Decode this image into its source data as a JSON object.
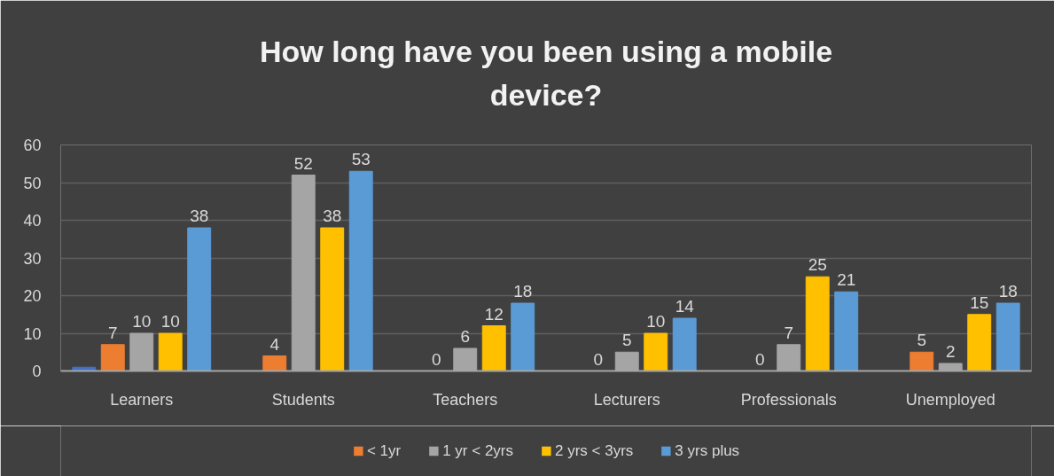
{
  "chart_data": {
    "type": "bar",
    "title": "How long have you been using a mobile device?",
    "categories": [
      "Learners",
      "Students",
      "Teachers",
      "Lecturers",
      "Professionals",
      "Unemployed"
    ],
    "series": [
      {
        "color": "#4472c4",
        "values": [
          1,
          null,
          null,
          null,
          null,
          null
        ]
      },
      {
        "name": "< 1yr",
        "color": "#ed7d31",
        "values": [
          7,
          4,
          0,
          0,
          0,
          5
        ],
        "value_labels": [
          "7",
          "4",
          "0",
          "0",
          "0",
          "5"
        ]
      },
      {
        "name": "1 yr < 2yrs",
        "color": "#a5a5a5",
        "values": [
          10,
          52,
          6,
          5,
          7,
          2
        ],
        "value_labels": [
          "10",
          "52",
          "6",
          "5",
          "7",
          "2"
        ]
      },
      {
        "name": "2 yrs < 3yrs",
        "color": "#ffc000",
        "values": [
          10,
          38,
          12,
          10,
          25,
          15
        ],
        "value_labels": [
          "10",
          "38",
          "12",
          "10",
          "25",
          "15"
        ]
      },
      {
        "name": "3 yrs plus",
        "color": "#5b9bd5",
        "values": [
          38,
          53,
          18,
          14,
          21,
          18
        ],
        "value_labels": [
          "38",
          "53",
          "18",
          "14",
          "21",
          "18"
        ]
      }
    ],
    "ylim": [
      0,
      60
    ],
    "yticks": [
      0,
      10,
      20,
      30,
      40,
      50,
      60
    ],
    "grid": "y",
    "legend": "bottom"
  }
}
